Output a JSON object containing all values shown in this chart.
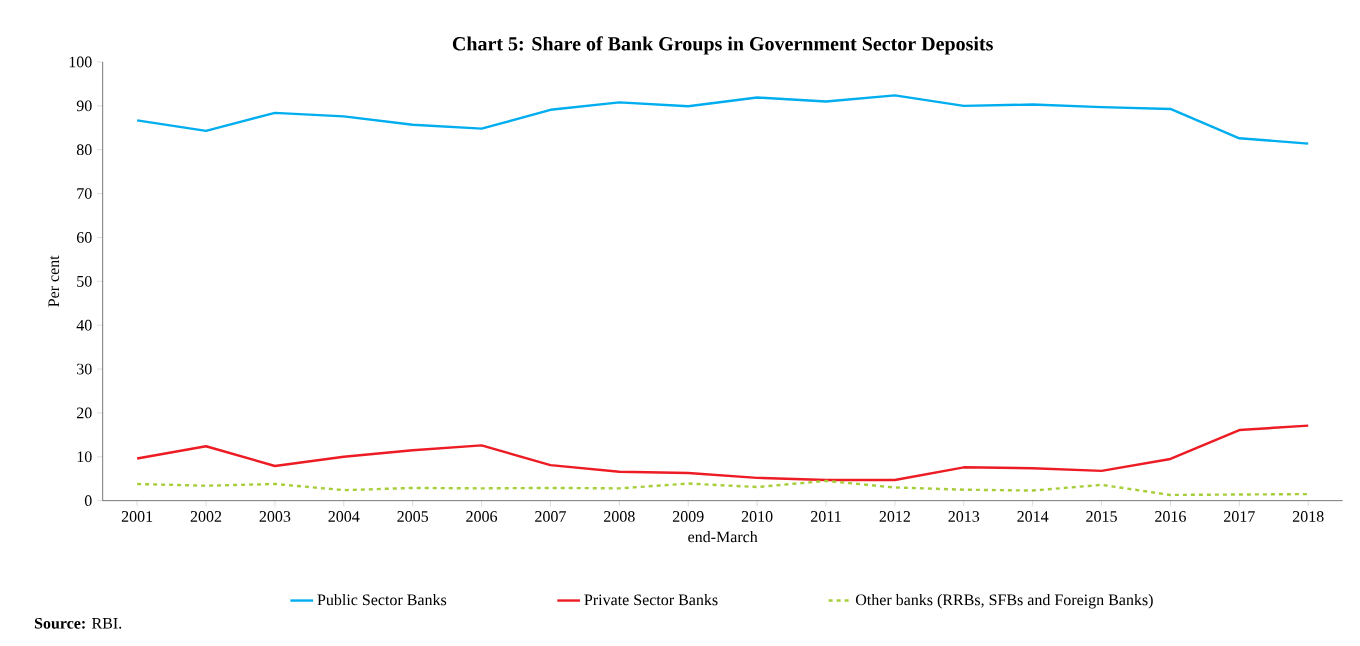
{
  "chart_data": {
    "type": "line",
    "title": "Chart 5: Share of Bank Groups in  Government Sector Deposits",
    "xlabel": "end-March",
    "ylabel": "Per cent",
    "categories": [
      "2001",
      "2002",
      "2003",
      "2004",
      "2005",
      "2006",
      "2007",
      "2008",
      "2009",
      "2010",
      "2011",
      "2012",
      "2013",
      "2014",
      "2015",
      "2016",
      "2017",
      "2018"
    ],
    "series": [
      {
        "name": "Public Sector Banks",
        "color": "#00aeef",
        "line_style": "solid",
        "values": [
          86.7,
          84.3,
          88.4,
          87.6,
          85.7,
          84.8,
          89.1,
          90.8,
          89.9,
          91.9,
          91.0,
          92.4,
          90.0,
          90.3,
          89.7,
          89.3,
          82.6,
          81.4
        ]
      },
      {
        "name": "Private Sector Banks",
        "color": "#ed1c24",
        "line_style": "solid",
        "values": [
          9.6,
          12.4,
          7.9,
          10.0,
          11.5,
          12.6,
          8.1,
          6.6,
          6.3,
          5.2,
          4.7,
          4.7,
          7.6,
          7.4,
          6.8,
          9.5,
          16.1,
          17.1
        ]
      },
      {
        "name": "Other banks (RRBs, SFBs and Foreign Banks)",
        "color": "#a6ce39",
        "line_style": "dashed",
        "values": [
          3.8,
          3.4,
          3.8,
          2.4,
          2.9,
          2.8,
          2.9,
          2.8,
          3.9,
          3.1,
          4.5,
          3.0,
          2.5,
          2.3,
          3.6,
          1.3,
          1.4,
          1.5
        ]
      }
    ],
    "ylim": [
      0,
      100
    ],
    "yticks": [
      0,
      10,
      20,
      30,
      40,
      50,
      60,
      70,
      80,
      90,
      100
    ],
    "legend": "bottom",
    "grid": false,
    "marker": "none",
    "annotations": [
      "**Source:** RBI."
    ]
  }
}
